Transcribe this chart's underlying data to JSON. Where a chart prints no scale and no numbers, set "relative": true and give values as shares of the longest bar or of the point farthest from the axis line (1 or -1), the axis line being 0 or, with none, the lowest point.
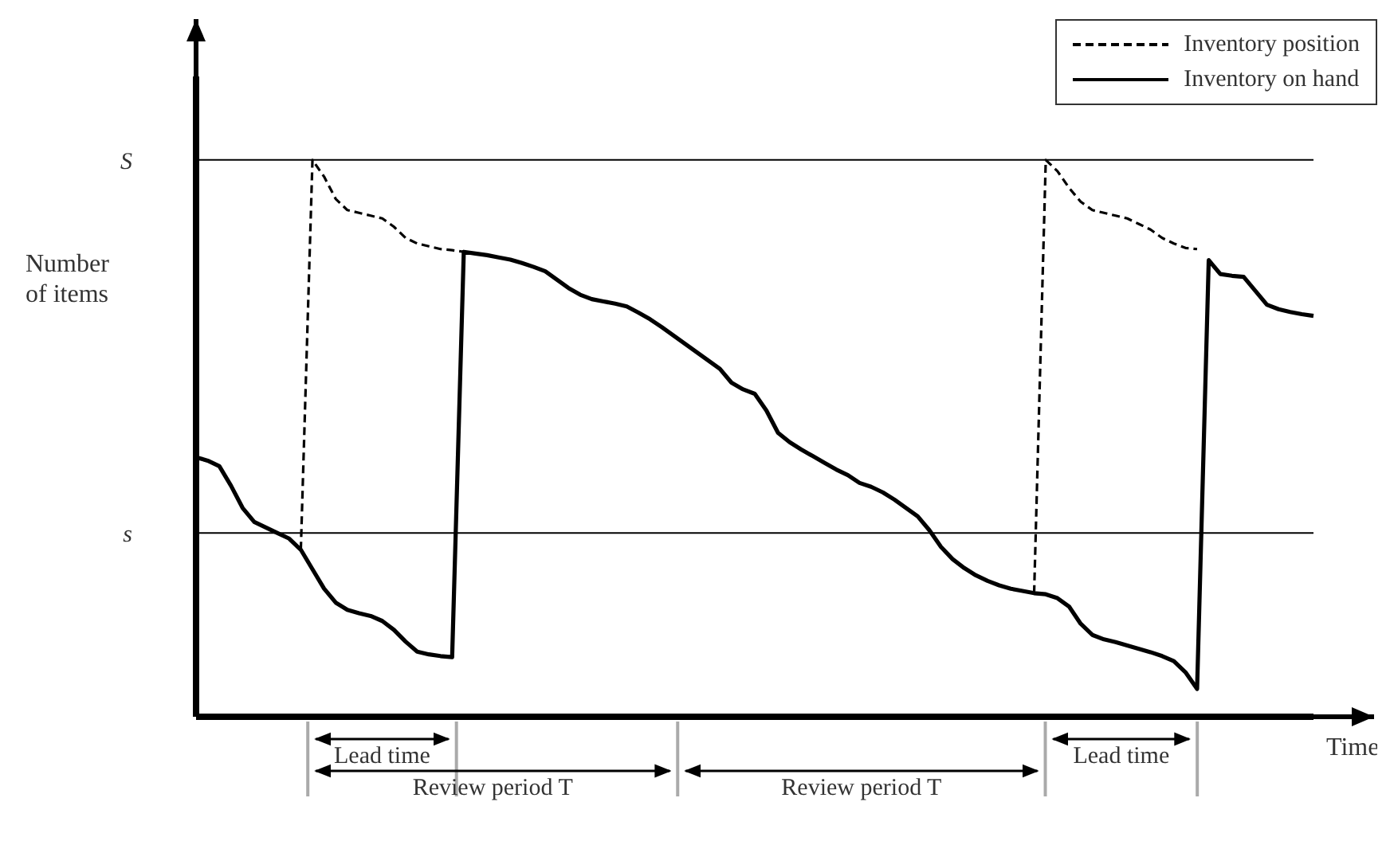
{
  "chart_data": {
    "type": "line",
    "relative": true,
    "xlabel": "Time",
    "ylabel": "Number of items",
    "legend": "top right",
    "marker": "none",
    "categories": [
      null,
      null,
      null,
      null,
      null,
      null,
      null,
      null,
      null,
      null,
      null,
      null,
      null,
      null,
      null,
      null,
      null,
      null,
      null,
      null,
      null,
      null,
      null,
      null,
      null,
      null,
      null,
      null,
      null,
      null,
      null,
      null,
      null,
      null,
      null,
      null,
      null,
      null,
      null,
      null,
      null,
      null,
      null,
      null,
      null,
      null,
      null,
      null,
      null,
      null,
      null,
      null,
      null,
      null,
      null,
      null,
      null,
      null,
      null,
      null,
      null,
      null,
      null,
      null,
      null,
      null,
      null,
      null,
      null,
      null,
      null,
      null,
      null,
      null,
      null,
      null,
      null,
      null,
      null,
      null,
      null,
      null,
      null,
      null,
      null,
      null,
      null,
      null,
      null,
      null,
      null,
      null,
      null,
      null,
      null,
      null,
      null
    ],
    "ref_lines": [
      {
        "axis": "y",
        "value": 1,
        "label": "S"
      },
      {
        "axis": "y",
        "value": 0.33,
        "label": "s"
      }
    ],
    "annotations": [
      "Lead time",
      "Review period T",
      "Review period T",
      "Lead time"
    ],
    "series": [
      {
        "name": "Inventory on hand",
        "color": "#000000",
        "line_style": "solid",
        "values": [
          0.466,
          0.46,
          0.45,
          0.415,
          0.375,
          0.35,
          0.34,
          0.33,
          0.32,
          0.3,
          0.265,
          0.23,
          0.205,
          0.192,
          0.186,
          0.181,
          0.172,
          0.156,
          0.135,
          0.117,
          0.112,
          0.109,
          0.107,
          0.835,
          0.832,
          0.829,
          0.825,
          0.821,
          0.815,
          0.808,
          0.8,
          0.785,
          0.77,
          0.758,
          0.75,
          0.746,
          0.742,
          0.737,
          0.726,
          0.714,
          0.7,
          0.685,
          0.67,
          0.655,
          0.64,
          0.625,
          0.6,
          0.588,
          0.58,
          0.55,
          0.51,
          0.493,
          0.48,
          0.468,
          0.456,
          0.444,
          0.434,
          0.42,
          0.413,
          0.403,
          0.39,
          0.375,
          0.36,
          0.335,
          0.305,
          0.283,
          0.267,
          0.254,
          0.244,
          0.236,
          0.23,
          0.226,
          0.222,
          0.22,
          0.213,
          0.198,
          0.167,
          0.147,
          0.139,
          0.134,
          0.128,
          0.122,
          0.116,
          0.109,
          0.1,
          0.08,
          0.05,
          0.82,
          0.795,
          0.792,
          0.79,
          0.765,
          0.74,
          0.732,
          0.727,
          0.723,
          0.72
        ]
      },
      {
        "name": "Inventory position",
        "color": "#000000",
        "line_style": "dashed",
        "values": [
          null,
          null,
          null,
          null,
          null,
          null,
          null,
          null,
          null,
          0.3,
          1,
          0.97,
          0.93,
          0.91,
          0.905,
          0.9,
          0.895,
          0.88,
          0.86,
          0.85,
          0.845,
          0.84,
          0.838,
          0.835,
          null,
          null,
          null,
          null,
          null,
          null,
          null,
          null,
          null,
          null,
          null,
          null,
          null,
          null,
          null,
          null,
          null,
          null,
          null,
          null,
          null,
          null,
          null,
          null,
          null,
          null,
          null,
          null,
          null,
          null,
          null,
          null,
          null,
          null,
          null,
          null,
          null,
          null,
          null,
          null,
          null,
          null,
          null,
          null,
          null,
          null,
          null,
          null,
          0.222,
          1,
          0.98,
          0.95,
          0.925,
          0.91,
          0.905,
          0.9,
          0.895,
          0.885,
          0.875,
          0.86,
          0.85,
          0.842,
          0.84,
          null,
          null,
          null,
          null,
          null,
          null,
          null,
          null,
          null,
          null
        ]
      }
    ]
  }
}
